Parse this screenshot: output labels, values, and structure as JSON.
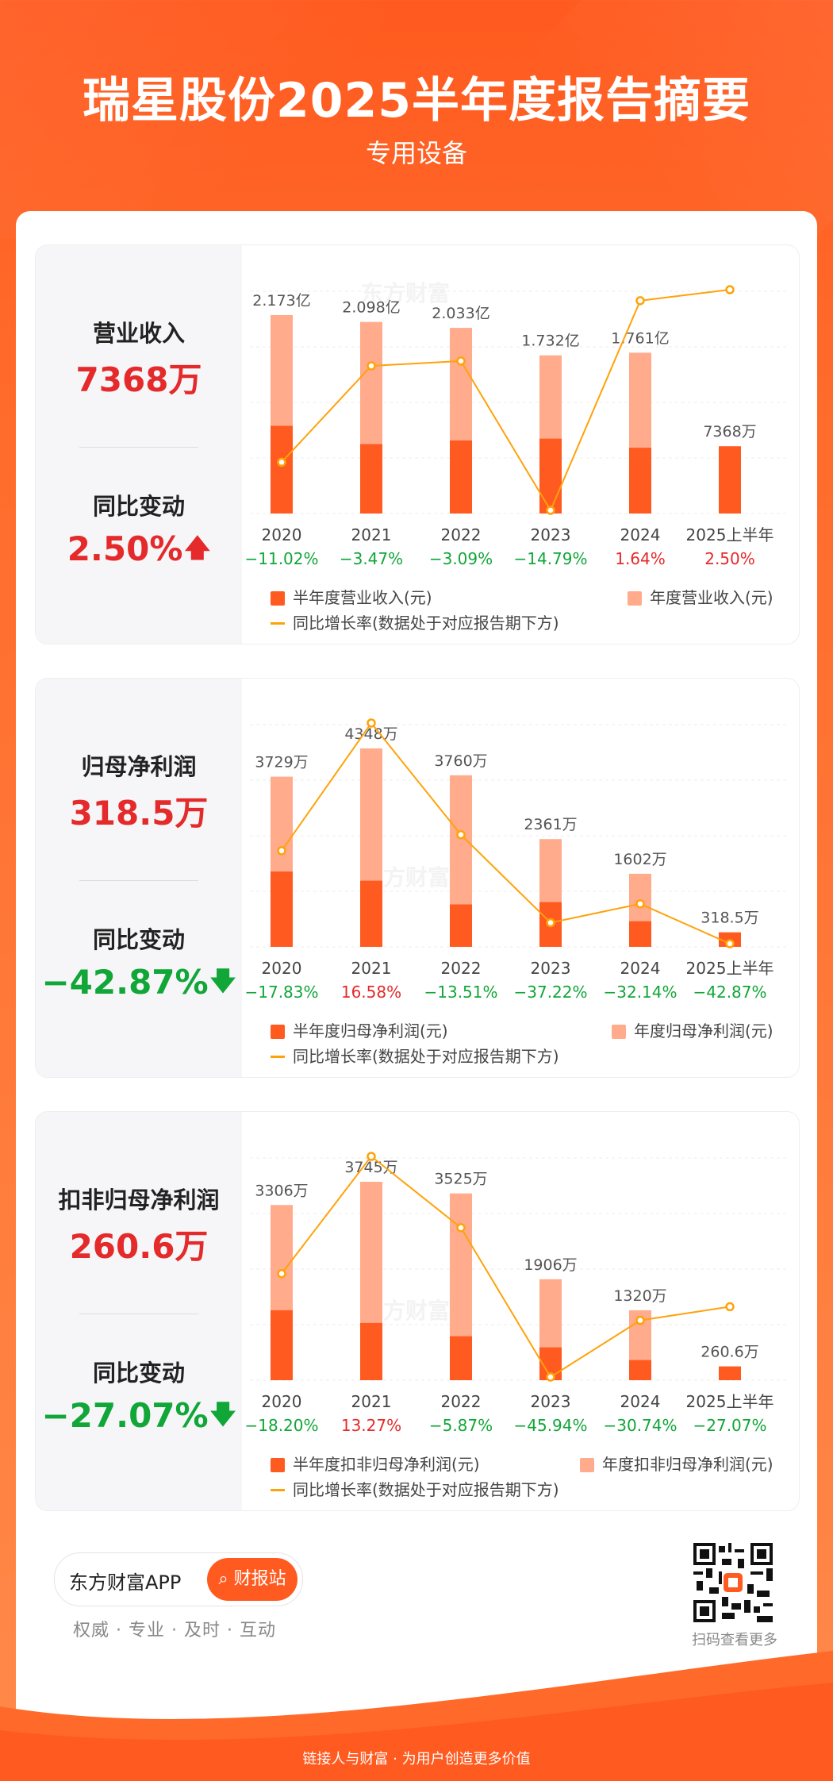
{
  "header": {
    "title": "瑞星股份2025半年度报告摘要",
    "subtitle": "专用设备"
  },
  "sections": [
    {
      "metric_label": "营业收入",
      "metric_value": "7368万",
      "change_label": "同比变动",
      "change_value": "2.50%",
      "change_direction": "up",
      "legend_half": "半年度营业收入(元)",
      "legend_annual": "年度营业收入(元)",
      "legend_line": "同比增长率(数据处于对应报告期下方)"
    },
    {
      "metric_label": "归母净利润",
      "metric_value": "318.5万",
      "change_label": "同比变动",
      "change_value": "−42.87%",
      "change_direction": "down",
      "legend_half": "半年度归母净利润(元)",
      "legend_annual": "年度归母净利润(元)",
      "legend_line": "同比增长率(数据处于对应报告期下方)"
    },
    {
      "metric_label": "扣非归母净利润",
      "metric_value": "260.6万",
      "change_label": "同比变动",
      "change_value": "−27.07%",
      "change_direction": "down",
      "legend_half": "半年度扣非归母净利润(元)",
      "legend_annual": "年度扣非归母净利润(元)",
      "legend_line": "同比增长率(数据处于对应报告期下方)"
    }
  ],
  "chart_data": [
    {
      "type": "bar",
      "categories": [
        "2020",
        "2021",
        "2022",
        "2023",
        "2024",
        "2025上半年"
      ],
      "annual_values": [
        2.173,
        2.098,
        2.033,
        1.732,
        1.761,
        null
      ],
      "annual_labels": [
        "2.173亿",
        "2.098亿",
        "2.033亿",
        "1.732亿",
        "1.761亿",
        ""
      ],
      "half_values": [
        0.96,
        0.76,
        0.8,
        0.82,
        0.72,
        0.7368
      ],
      "half_label_last": "7368万",
      "unit": "亿",
      "growth": [
        -11.02,
        -3.47,
        -3.09,
        -14.79,
        1.64,
        2.5
      ],
      "growth_labels": [
        "−11.02%",
        "−3.47%",
        "−3.09%",
        "−14.79%",
        "1.64%",
        "2.50%"
      ],
      "colors": {
        "half": "#ff5a1f",
        "annual": "#ffab8c",
        "line": "#ffa20a",
        "up": "#e42a2a",
        "down": "#11a638"
      }
    },
    {
      "type": "bar",
      "categories": [
        "2020",
        "2021",
        "2022",
        "2023",
        "2024",
        "2025上半年"
      ],
      "annual_values": [
        3729,
        4348,
        3760,
        2361,
        1602,
        null
      ],
      "annual_labels": [
        "3729万",
        "4348万",
        "3760万",
        "2361万",
        "1602万",
        ""
      ],
      "half_values": [
        1650,
        1450,
        930,
        980,
        560,
        318.5
      ],
      "half_label_last": "318.5万",
      "unit": "万",
      "growth": [
        -17.83,
        16.58,
        -13.51,
        -37.22,
        -32.14,
        -42.87
      ],
      "growth_labels": [
        "−17.83%",
        "16.58%",
        "−13.51%",
        "−37.22%",
        "−32.14%",
        "−42.87%"
      ],
      "colors": {
        "half": "#ff5a1f",
        "annual": "#ffab8c",
        "line": "#ffa20a",
        "up": "#e42a2a",
        "down": "#11a638"
      }
    },
    {
      "type": "bar",
      "categories": [
        "2020",
        "2021",
        "2022",
        "2023",
        "2024",
        "2025上半年"
      ],
      "annual_values": [
        3306,
        3745,
        3525,
        1906,
        1320,
        null
      ],
      "annual_labels": [
        "3306万",
        "3745万",
        "3525万",
        "1906万",
        "1320万",
        ""
      ],
      "half_values": [
        1320,
        1080,
        830,
        620,
        380,
        260.6
      ],
      "half_label_last": "260.6万",
      "unit": "万",
      "growth": [
        -18.2,
        13.27,
        -5.87,
        -45.94,
        -30.74,
        -27.07
      ],
      "growth_labels": [
        "−18.20%",
        "13.27%",
        "−5.87%",
        "−45.94%",
        "−30.74%",
        "−27.07%"
      ],
      "colors": {
        "half": "#ff5a1f",
        "annual": "#ffab8c",
        "line": "#ffa20a",
        "up": "#e42a2a",
        "down": "#11a638"
      }
    }
  ],
  "footer": {
    "brand": "东方财富APP",
    "button": "财报站",
    "tagline": "权威 · 专业 · 及时 · 互动",
    "qr_caption": "扫码查看更多",
    "bottom_text": "链接人与财富 · 为用户创造更多价值",
    "watermark": "东方财富"
  }
}
